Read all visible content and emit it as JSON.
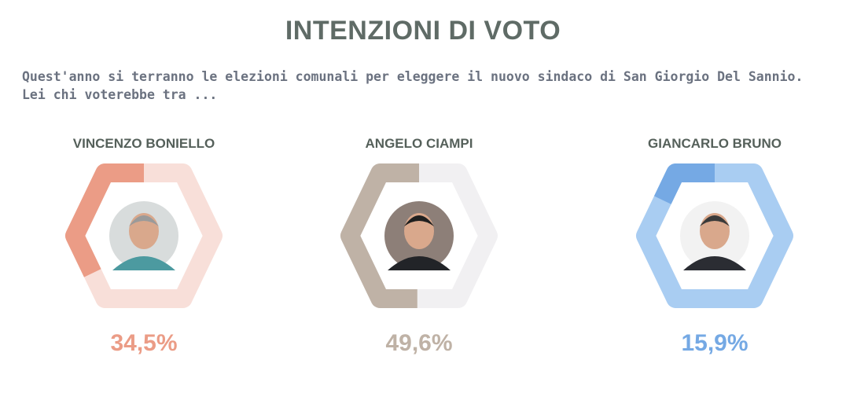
{
  "header": {
    "title": "INTENZIONI DI VOTO",
    "subtitle": "Quest'anno si terranno le elezioni comunali per eleggere il nuovo sindaco di San Giorgio Del Sannio. Lei chi voterebbe tra ..."
  },
  "chart_data": {
    "type": "pie",
    "title": "INTENZIONI DI VOTO",
    "categories": [
      "VINCENZO BONIELLO",
      "ANGELO CIAMPI",
      "GIANCARLO BRUNO"
    ],
    "values": [
      34.5,
      49.6,
      15.9
    ],
    "value_labels": [
      "34,5%",
      "49,6%",
      "15,9%"
    ],
    "colors": [
      "#eb9c86",
      "#bfb2a6",
      "#75a9e4"
    ],
    "track_colors": [
      "#f8dfd9",
      "#f1f0f2",
      "#a9cdf2"
    ],
    "unit": "%"
  },
  "candidates": [
    {
      "name": "VINCENZO BONIELLO",
      "pct_label": "34,5%",
      "photo_icon": "candidate-photo-boniello"
    },
    {
      "name": "ANGELO CIAMPI",
      "pct_label": "49,6%",
      "photo_icon": "candidate-photo-ciampi"
    },
    {
      "name": "GIANCARLO BRUNO",
      "pct_label": "15,9%",
      "photo_icon": "candidate-photo-bruno"
    }
  ]
}
